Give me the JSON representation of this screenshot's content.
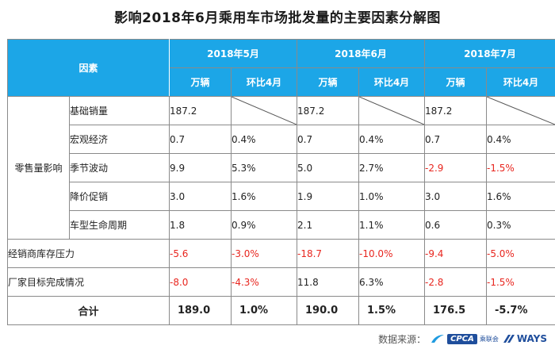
{
  "title": "影响2018年6月乘用车市场批发量的主要因素分解图",
  "header": {
    "factor": "因素",
    "months": [
      "2018年5月",
      "2018年6月",
      "2018年7月"
    ],
    "unit_label": "万辆",
    "mom_label": "环比4月"
  },
  "groups": {
    "retail": "零售量影响"
  },
  "rows": [
    {
      "label": "基础销量",
      "cells": [
        "187.2",
        "",
        "187.2",
        "",
        "187.2",
        ""
      ]
    },
    {
      "label": "宏观经济",
      "cells": [
        "0.7",
        "0.4%",
        "0.7",
        "0.4%",
        "0.7",
        "0.4%"
      ]
    },
    {
      "label": "季节波动",
      "cells": [
        "9.9",
        "5.3%",
        "5.0",
        "2.7%",
        "-2.9",
        "-1.5%"
      ]
    },
    {
      "label": "降价促销",
      "cells": [
        "3.0",
        "1.6%",
        "1.9",
        "1.0%",
        "3.0",
        "1.6%"
      ]
    },
    {
      "label": "车型生命周期",
      "cells": [
        "1.8",
        "0.9%",
        "2.1",
        "1.1%",
        "0.6",
        "0.3%"
      ]
    },
    {
      "label": "经销商库存压力",
      "cells": [
        "-5.6",
        "-3.0%",
        "-18.7",
        "-10.0%",
        "-9.4",
        "-5.0%"
      ]
    },
    {
      "label": "厂家目标完成情况",
      "cells": [
        "-8.0",
        "-4.3%",
        "11.8",
        "6.3%",
        "-2.8",
        "-1.5%"
      ]
    }
  ],
  "total": {
    "label": "合计",
    "cells": [
      "189.0",
      "1.0%",
      "190.0",
      "1.5%",
      "176.5",
      "-5.7%"
    ]
  },
  "footer": {
    "source_label": "数据来源：",
    "cpca_logo_text": "CPCA",
    "cpca_sub_text": "乘联会",
    "ways_logo_text": "WAYS"
  },
  "colors": {
    "header_bg": "#1ca6e7",
    "negative": "#e8261f",
    "logo_blue": "#1f4e9c"
  }
}
